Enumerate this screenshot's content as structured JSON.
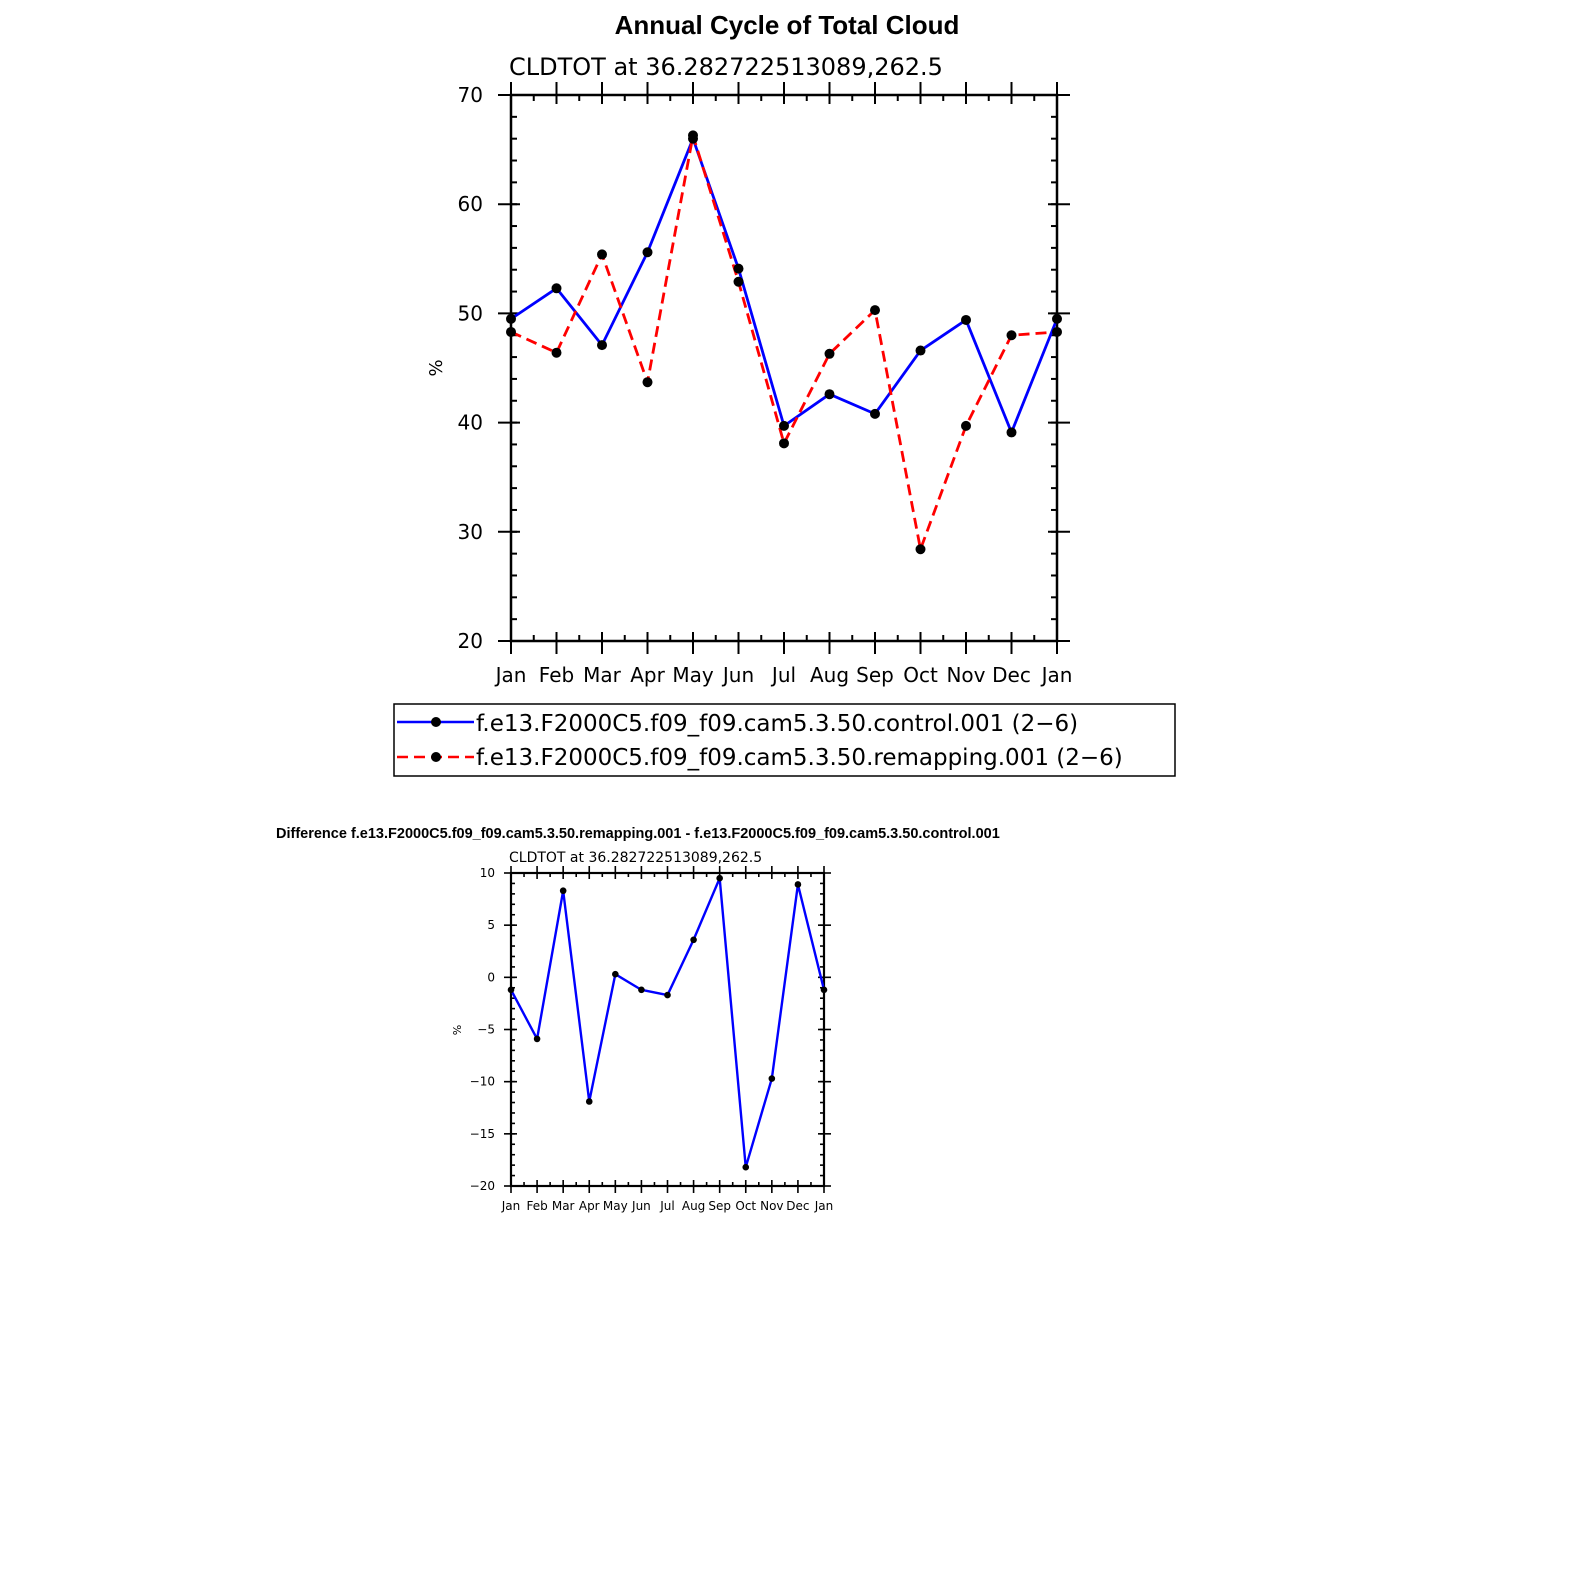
{
  "chart_data": [
    {
      "type": "line",
      "title": "Annual Cycle of Total Cloud",
      "subtitle": "CLDTOT at 36.282722513089,262.5",
      "xlabel": "",
      "ylabel": "%",
      "categories": [
        "Jan",
        "Feb",
        "Mar",
        "Apr",
        "May",
        "Jun",
        "Jul",
        "Aug",
        "Sep",
        "Oct",
        "Nov",
        "Dec",
        "Jan"
      ],
      "ylim": [
        20,
        70
      ],
      "yticks": [
        "20",
        "30",
        "40",
        "50",
        "60",
        "70"
      ],
      "grid": false,
      "legend_position": "bottom",
      "series": [
        {
          "name": "f.e13.F2000C5.f09_f09.cam5.3.50.control.001 (2−6)",
          "color": "#0000ff",
          "style": "solid",
          "values": [
            49.5,
            52.3,
            47.1,
            55.6,
            66.0,
            54.1,
            39.7,
            42.6,
            40.8,
            46.6,
            49.4,
            39.1,
            49.5
          ]
        },
        {
          "name": "f.e13.F2000C5.f09_f09.cam5.3.50.remapping.001 (2−6)",
          "color": "#ff0000",
          "style": "dashed",
          "values": [
            48.3,
            46.4,
            55.4,
            43.7,
            66.3,
            52.9,
            38.1,
            46.3,
            50.3,
            28.4,
            39.7,
            48.0,
            48.3
          ]
        }
      ]
    },
    {
      "type": "line",
      "title": "Difference f.e13.F2000C5.f09_f09.cam5.3.50.remapping.001 - f.e13.F2000C5.f09_f09.cam5.3.50.control.001",
      "subtitle": "CLDTOT at 36.282722513089,262.5",
      "xlabel": "",
      "ylabel": "%",
      "categories": [
        "Jan",
        "Feb",
        "Mar",
        "Apr",
        "May",
        "Jun",
        "Jul",
        "Aug",
        "Sep",
        "Oct",
        "Nov",
        "Dec",
        "Jan"
      ],
      "ylim": [
        -20,
        10
      ],
      "yticks": [
        "−20",
        "−15",
        "−10",
        "−5",
        "0",
        "5",
        "10"
      ],
      "grid": false,
      "series": [
        {
          "name": "",
          "color": "#0000ff",
          "style": "solid",
          "values": [
            -1.2,
            -5.9,
            8.3,
            -11.9,
            0.3,
            -1.2,
            -1.7,
            3.6,
            9.5,
            -18.2,
            -9.7,
            8.9,
            -1.2
          ]
        }
      ]
    }
  ]
}
